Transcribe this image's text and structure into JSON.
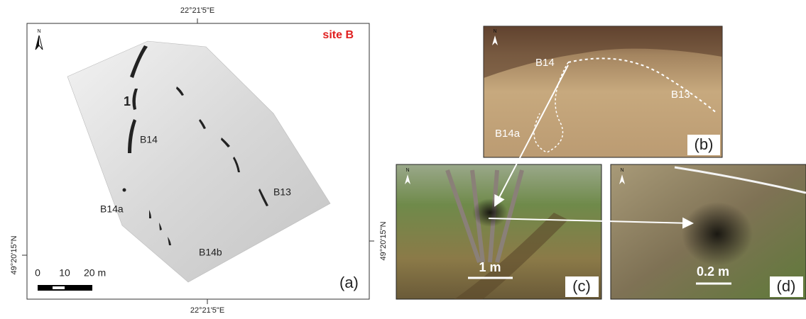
{
  "panel_a": {
    "coordinates": {
      "top": "22°21'5\"E",
      "bottom": "22°21'5\"E",
      "left": "49°20'15\"N",
      "right": "49°20'15\"N"
    },
    "site_label": "site B",
    "north_label": "N",
    "feature_labels": [
      "1",
      "B14",
      "B14a",
      "B13",
      "B14b"
    ],
    "scale_bar": {
      "ticks": [
        "0",
        "10",
        "20 m"
      ]
    },
    "panel_label": "(a)"
  },
  "panel_b": {
    "north_label": "N",
    "labels": [
      "B14",
      "B13",
      "B14a"
    ],
    "panel_label": "(b)"
  },
  "panel_c": {
    "north_label": "N",
    "scale_label": "1 m",
    "panel_label": "(c)"
  },
  "panel_d": {
    "north_label": "N",
    "scale_label": "0.2 m",
    "panel_label": "(d)"
  }
}
